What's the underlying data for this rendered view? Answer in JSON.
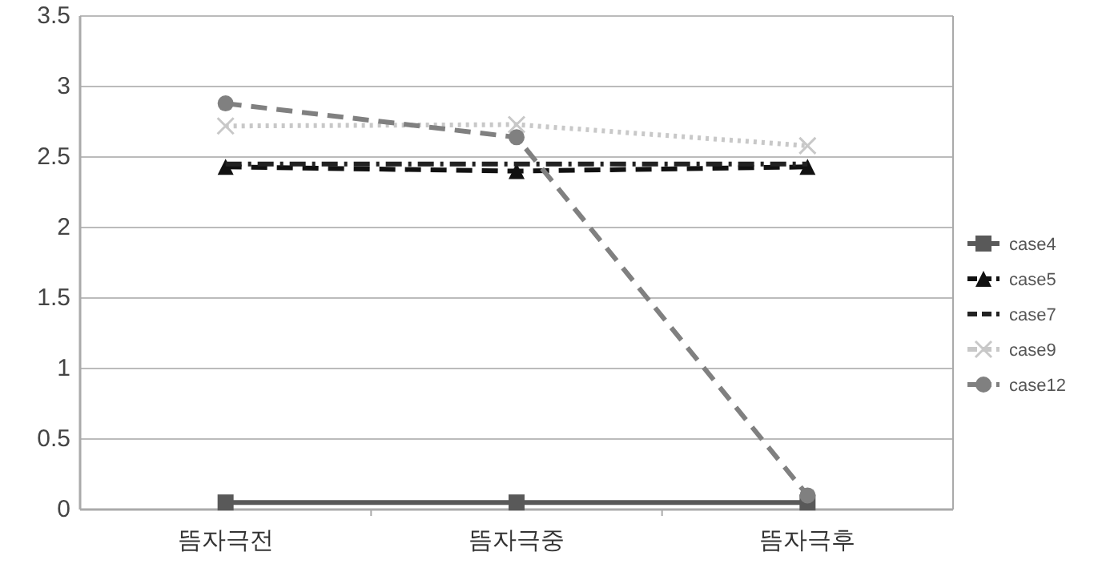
{
  "chart_data": {
    "type": "line",
    "categories": [
      "뜸자극전",
      "뜸자극중",
      "뜸자극후"
    ],
    "ylim": [
      0,
      3.5
    ],
    "yticks": [
      0,
      0.5,
      1,
      1.5,
      2,
      2.5,
      3,
      3.5
    ],
    "grid": "y",
    "legend": "right",
    "series": [
      {
        "name": "case4",
        "color": "#595959",
        "values": [
          0.05,
          0.05,
          0.05
        ],
        "marker": "square",
        "line_style": "solid"
      },
      {
        "name": "case5",
        "color": "#111111",
        "values": [
          2.43,
          2.4,
          2.43
        ],
        "marker": "triangle",
        "line_style": "dashed"
      },
      {
        "name": "case7",
        "color": "#222222",
        "values": [
          2.45,
          2.45,
          2.45
        ],
        "marker": "none",
        "line_style": "dashdot"
      },
      {
        "name": "case9",
        "color": "#c8c8c8",
        "values": [
          2.72,
          2.73,
          2.58
        ],
        "marker": "cross",
        "line_style": "dotted"
      },
      {
        "name": "case12",
        "color": "#808080",
        "values": [
          2.88,
          2.64,
          0.1
        ],
        "marker": "circle",
        "line_style": "dashed"
      }
    ]
  }
}
